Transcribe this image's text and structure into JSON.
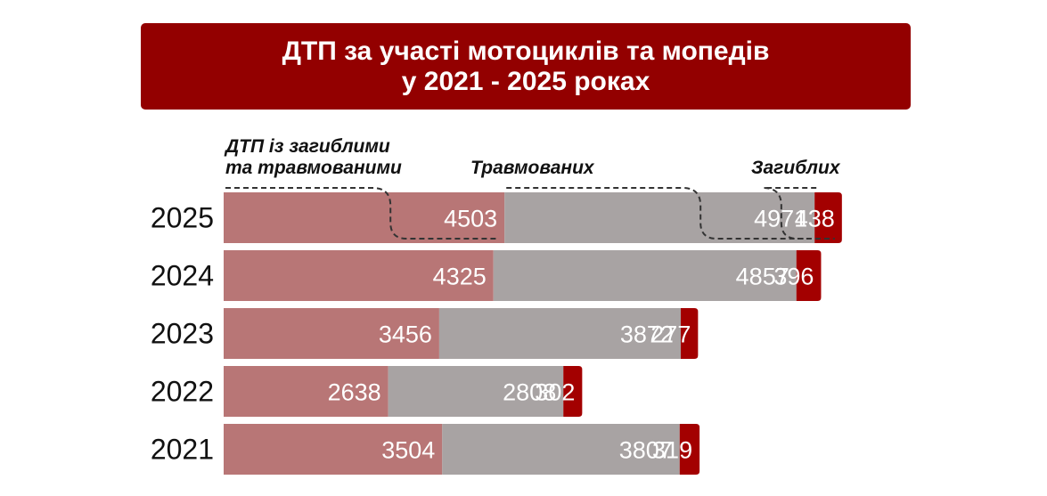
{
  "title": {
    "line1": "ДТП за участі мотоциклів та мопедів",
    "line2": "у 2021 - 2025 роках"
  },
  "chart_data": {
    "type": "bar",
    "orientation": "horizontal",
    "stacked": true,
    "categories": [
      "2025",
      "2024",
      "2023",
      "2022",
      "2021"
    ],
    "series": [
      {
        "name": "ДТП із загиблими та травмованими",
        "name_lines": [
          "ДТП із загиблими",
          "та травмованими"
        ],
        "color": "#b87676",
        "values": [
          4503,
          4325,
          3456,
          2638,
          3504
        ]
      },
      {
        "name": "Травмованих",
        "name_lines": [
          "Травмованих"
        ],
        "color": "#a8a3a3",
        "values": [
          4971,
          4857,
          3872,
          2808,
          3807
        ]
      },
      {
        "name": "Загиблих",
        "name_lines": [
          "Загиблих"
        ],
        "color": "#a30000",
        "values": [
          438,
          396,
          277,
          302,
          319
        ]
      }
    ],
    "legend_placement": "top",
    "grid": false
  }
}
